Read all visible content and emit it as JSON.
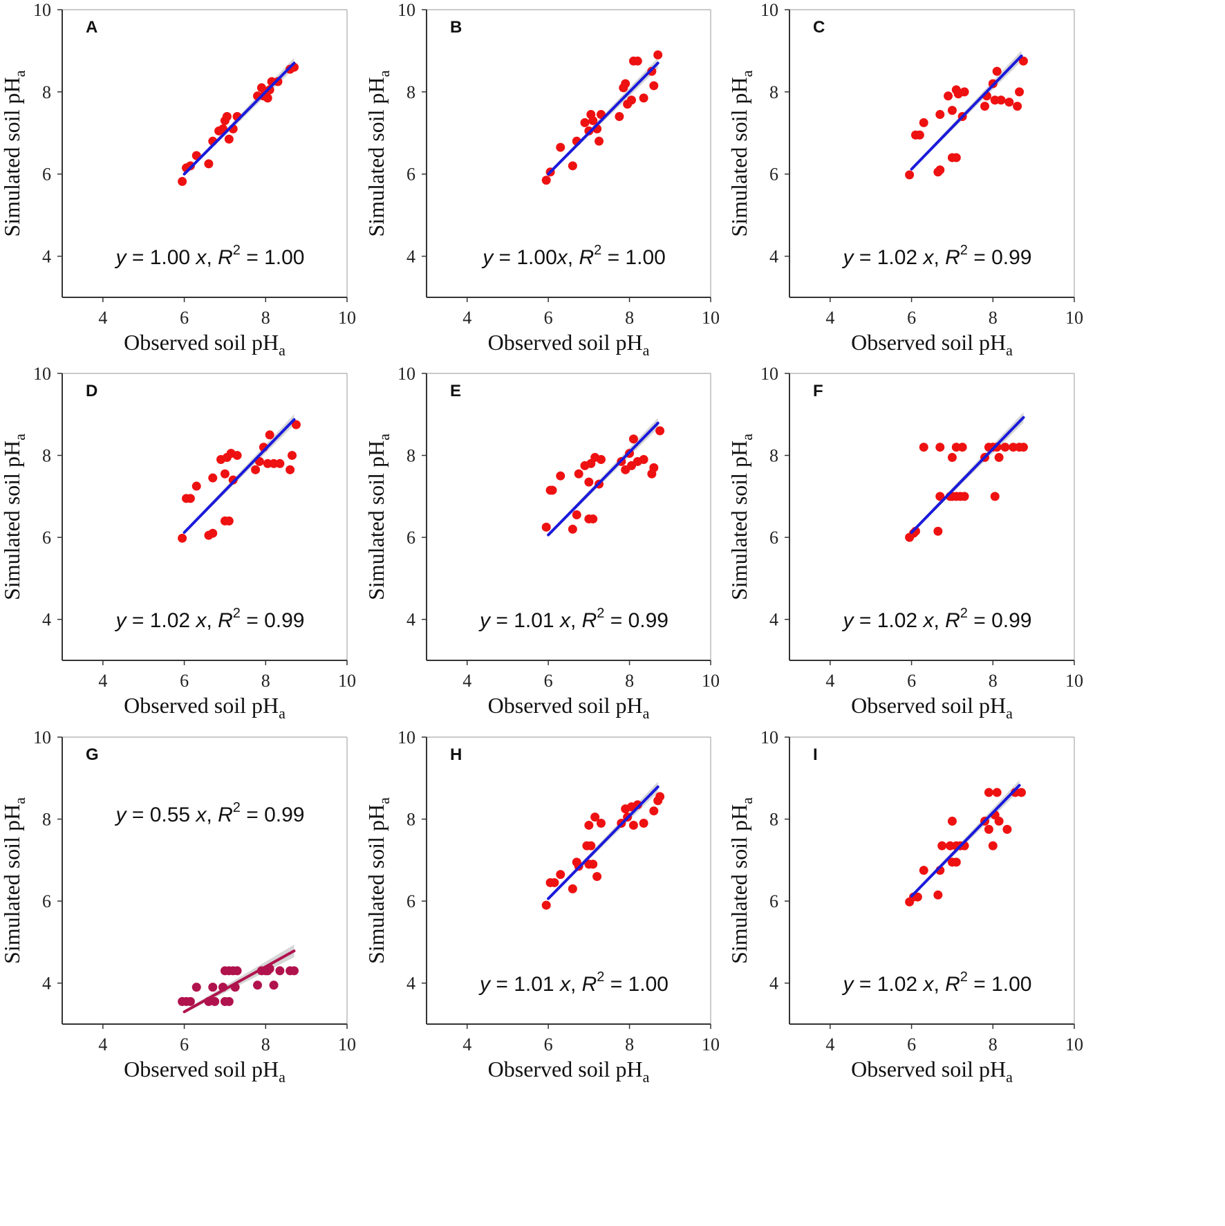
{
  "colors": {
    "point_red": "#ee1111",
    "point_maroon": "#b0124d",
    "line_blue": "#1a1adb",
    "line_maroon": "#b0124d",
    "band_gray": "#c8c8c8",
    "axis": "#333333"
  },
  "axis_common": {
    "xlabel": "Observed soil pH",
    "ylabel": "Simulated soil pH",
    "label_subscript": "a",
    "xlim": [
      3,
      10
    ],
    "ylim": [
      3,
      10
    ],
    "xticks": [
      4,
      6,
      8,
      10
    ],
    "yticks": [
      4,
      6,
      8,
      10
    ]
  },
  "chart_data": [
    {
      "id": "A",
      "type": "scatter",
      "title": "A",
      "equation_y": "y",
      "equation_mid": " = 1.00 ",
      "equation_x": "x",
      "equation_comma": ", ",
      "equation_R": "R",
      "equation_sup": "2",
      "equation_val": " = 1.00",
      "equation_pos": "bottom",
      "style": "blue",
      "slope": 1.0,
      "fit_x": [
        6.0,
        8.7
      ],
      "points": [
        [
          5.95,
          5.82
        ],
        [
          6.05,
          6.15
        ],
        [
          6.15,
          6.2
        ],
        [
          6.3,
          6.45
        ],
        [
          6.6,
          6.25
        ],
        [
          6.7,
          6.8
        ],
        [
          6.85,
          7.05
        ],
        [
          6.95,
          7.1
        ],
        [
          7.0,
          7.3
        ],
        [
          7.05,
          7.4
        ],
        [
          7.1,
          6.85
        ],
        [
          7.2,
          7.1
        ],
        [
          7.3,
          7.4
        ],
        [
          7.8,
          7.9
        ],
        [
          7.9,
          8.1
        ],
        [
          7.95,
          7.9
        ],
        [
          8.05,
          7.85
        ],
        [
          8.1,
          8.05
        ],
        [
          8.15,
          8.25
        ],
        [
          8.3,
          8.25
        ],
        [
          8.6,
          8.55
        ],
        [
          8.7,
          8.6
        ]
      ]
    },
    {
      "id": "B",
      "type": "scatter",
      "title": "B",
      "equation_y": "y",
      "equation_mid": " = 1.00",
      "equation_x": "x",
      "equation_comma": ", ",
      "equation_R": "R",
      "equation_sup": "2",
      "equation_val": " = 1.00",
      "equation_pos": "bottom",
      "style": "blue",
      "slope": 1.0,
      "fit_x": [
        6.0,
        8.7
      ],
      "points": [
        [
          5.95,
          5.85
        ],
        [
          6.05,
          6.05
        ],
        [
          6.3,
          6.65
        ],
        [
          6.6,
          6.2
        ],
        [
          6.7,
          6.8
        ],
        [
          6.9,
          7.25
        ],
        [
          7.0,
          7.05
        ],
        [
          7.05,
          7.45
        ],
        [
          7.1,
          7.3
        ],
        [
          7.2,
          7.1
        ],
        [
          7.25,
          6.8
        ],
        [
          7.3,
          7.45
        ],
        [
          7.75,
          7.4
        ],
        [
          7.85,
          8.1
        ],
        [
          7.9,
          8.2
        ],
        [
          7.95,
          7.7
        ],
        [
          8.05,
          7.8
        ],
        [
          8.1,
          8.75
        ],
        [
          8.2,
          8.75
        ],
        [
          8.35,
          7.85
        ],
        [
          8.55,
          8.5
        ],
        [
          8.6,
          8.15
        ],
        [
          8.7,
          8.9
        ]
      ]
    },
    {
      "id": "C",
      "type": "scatter",
      "title": "C",
      "equation_y": "y",
      "equation_mid": " = 1.02 ",
      "equation_x": "x",
      "equation_comma": ", ",
      "equation_R": "R",
      "equation_sup": "2",
      "equation_val": " = 0.99",
      "equation_pos": "bottom",
      "style": "blue",
      "slope": 1.02,
      "fit_x": [
        6.0,
        8.7
      ],
      "points": [
        [
          5.95,
          5.98
        ],
        [
          6.1,
          6.95
        ],
        [
          6.2,
          6.95
        ],
        [
          6.3,
          7.25
        ],
        [
          6.65,
          6.05
        ],
        [
          6.7,
          6.1
        ],
        [
          6.7,
          7.45
        ],
        [
          6.9,
          7.9
        ],
        [
          7.0,
          7.55
        ],
        [
          7.0,
          6.4
        ],
        [
          7.1,
          6.4
        ],
        [
          7.1,
          8.05
        ],
        [
          7.15,
          7.95
        ],
        [
          7.25,
          7.4
        ],
        [
          7.3,
          8.0
        ],
        [
          7.8,
          7.65
        ],
        [
          7.85,
          7.9
        ],
        [
          8.0,
          8.2
        ],
        [
          8.05,
          7.8
        ],
        [
          8.1,
          8.5
        ],
        [
          8.2,
          7.8
        ],
        [
          8.4,
          7.75
        ],
        [
          8.6,
          7.65
        ],
        [
          8.65,
          8.0
        ],
        [
          8.75,
          8.75
        ]
      ]
    },
    {
      "id": "D",
      "type": "scatter",
      "title": "D",
      "equation_y": "y",
      "equation_mid": " = 1.02 ",
      "equation_x": "x",
      "equation_comma": ", ",
      "equation_R": "R",
      "equation_sup": "2",
      "equation_val": " = 0.99",
      "equation_pos": "bottom",
      "style": "blue",
      "slope": 1.02,
      "fit_x": [
        6.0,
        8.7
      ],
      "points": [
        [
          5.95,
          5.98
        ],
        [
          6.05,
          6.95
        ],
        [
          6.15,
          6.95
        ],
        [
          6.3,
          7.25
        ],
        [
          6.6,
          6.05
        ],
        [
          6.7,
          6.1
        ],
        [
          6.7,
          7.45
        ],
        [
          6.9,
          7.9
        ],
        [
          7.0,
          7.55
        ],
        [
          7.0,
          6.4
        ],
        [
          7.1,
          6.4
        ],
        [
          7.05,
          7.95
        ],
        [
          7.15,
          8.05
        ],
        [
          7.2,
          7.4
        ],
        [
          7.3,
          8.0
        ],
        [
          7.75,
          7.65
        ],
        [
          7.85,
          7.85
        ],
        [
          7.95,
          8.2
        ],
        [
          8.05,
          7.8
        ],
        [
          8.1,
          8.5
        ],
        [
          8.2,
          7.8
        ],
        [
          8.35,
          7.8
        ],
        [
          8.6,
          7.65
        ],
        [
          8.65,
          8.0
        ],
        [
          8.75,
          8.75
        ]
      ]
    },
    {
      "id": "E",
      "type": "scatter",
      "title": "E",
      "equation_y": "y",
      "equation_mid": " = 1.01 ",
      "equation_x": "x",
      "equation_comma": ", ",
      "equation_R": "R",
      "equation_sup": "2",
      "equation_val": " = 0.99",
      "equation_pos": "bottom",
      "style": "blue",
      "slope": 1.01,
      "fit_x": [
        6.0,
        8.7
      ],
      "points": [
        [
          5.95,
          6.25
        ],
        [
          6.05,
          7.15
        ],
        [
          6.1,
          7.15
        ],
        [
          6.3,
          7.5
        ],
        [
          6.6,
          6.2
        ],
        [
          6.7,
          6.55
        ],
        [
          6.75,
          7.55
        ],
        [
          6.9,
          7.75
        ],
        [
          7.0,
          7.35
        ],
        [
          7.0,
          6.45
        ],
        [
          7.1,
          6.45
        ],
        [
          7.05,
          7.8
        ],
        [
          7.15,
          7.95
        ],
        [
          7.25,
          7.3
        ],
        [
          7.3,
          7.9
        ],
        [
          7.8,
          7.85
        ],
        [
          7.9,
          7.65
        ],
        [
          8.0,
          8.05
        ],
        [
          8.05,
          7.75
        ],
        [
          8.1,
          8.4
        ],
        [
          8.2,
          7.85
        ],
        [
          8.35,
          7.9
        ],
        [
          8.55,
          7.55
        ],
        [
          8.6,
          7.7
        ],
        [
          8.75,
          8.6
        ]
      ]
    },
    {
      "id": "F",
      "type": "scatter",
      "title": "F",
      "equation_y": "y",
      "equation_mid": " = 1.02 ",
      "equation_x": "x",
      "equation_comma": ", ",
      "equation_R": "R",
      "equation_sup": "2",
      "equation_val": " = 0.99",
      "equation_pos": "bottom",
      "style": "blue",
      "slope": 1.02,
      "fit_x": [
        6.0,
        8.75
      ],
      "points": [
        [
          5.95,
          6.0
        ],
        [
          6.05,
          6.1
        ],
        [
          6.1,
          6.15
        ],
        [
          6.3,
          8.2
        ],
        [
          6.65,
          6.15
        ],
        [
          6.7,
          7.0
        ],
        [
          6.7,
          8.2
        ],
        [
          6.95,
          7.0
        ],
        [
          7.0,
          7.95
        ],
        [
          7.0,
          7.0
        ],
        [
          7.1,
          8.2
        ],
        [
          7.1,
          7.0
        ],
        [
          7.2,
          7.0
        ],
        [
          7.25,
          8.2
        ],
        [
          7.3,
          7.0
        ],
        [
          7.8,
          7.95
        ],
        [
          7.9,
          8.2
        ],
        [
          8.0,
          8.2
        ],
        [
          8.05,
          7.0
        ],
        [
          8.1,
          8.2
        ],
        [
          8.15,
          7.95
        ],
        [
          8.3,
          8.2
        ],
        [
          8.5,
          8.2
        ],
        [
          8.65,
          8.2
        ],
        [
          8.75,
          8.2
        ]
      ]
    },
    {
      "id": "G",
      "type": "scatter",
      "title": "G",
      "equation_y": "y",
      "equation_mid": " = 0.55 ",
      "equation_x": "x",
      "equation_comma": ", ",
      "equation_R": "R",
      "equation_sup": "2",
      "equation_val": " = 0.99",
      "equation_pos": "top",
      "style": "maroon",
      "slope": 0.55,
      "fit_x": [
        6.0,
        8.7
      ],
      "points": [
        [
          5.95,
          3.55
        ],
        [
          6.05,
          3.55
        ],
        [
          6.15,
          3.55
        ],
        [
          6.3,
          3.9
        ],
        [
          6.6,
          3.55
        ],
        [
          6.7,
          3.9
        ],
        [
          6.75,
          3.55
        ],
        [
          6.95,
          3.9
        ],
        [
          7.0,
          4.3
        ],
        [
          7.0,
          3.55
        ],
        [
          7.1,
          4.3
        ],
        [
          7.1,
          3.55
        ],
        [
          7.2,
          4.3
        ],
        [
          7.25,
          3.9
        ],
        [
          7.3,
          4.3
        ],
        [
          7.8,
          3.95
        ],
        [
          7.9,
          4.3
        ],
        [
          8.0,
          4.3
        ],
        [
          8.05,
          4.3
        ],
        [
          8.1,
          4.35
        ],
        [
          8.2,
          3.95
        ],
        [
          8.35,
          4.3
        ],
        [
          8.6,
          4.3
        ],
        [
          8.7,
          4.3
        ]
      ]
    },
    {
      "id": "H",
      "type": "scatter",
      "title": "H",
      "equation_y": "y",
      "equation_mid": " = 1.01 ",
      "equation_x": "x",
      "equation_comma": ", ",
      "equation_R": "R",
      "equation_sup": "2",
      "equation_val": " = 1.00",
      "equation_pos": "bottom",
      "style": "blue",
      "slope": 1.01,
      "fit_x": [
        6.0,
        8.7
      ],
      "points": [
        [
          5.95,
          5.9
        ],
        [
          6.05,
          6.45
        ],
        [
          6.15,
          6.45
        ],
        [
          6.3,
          6.65
        ],
        [
          6.6,
          6.3
        ],
        [
          6.7,
          6.95
        ],
        [
          6.75,
          6.85
        ],
        [
          6.95,
          7.35
        ],
        [
          7.0,
          7.85
        ],
        [
          7.0,
          6.9
        ],
        [
          7.1,
          6.9
        ],
        [
          7.05,
          7.35
        ],
        [
          7.15,
          8.05
        ],
        [
          7.2,
          6.6
        ],
        [
          7.3,
          7.9
        ],
        [
          7.8,
          7.9
        ],
        [
          7.9,
          8.25
        ],
        [
          7.95,
          8.05
        ],
        [
          8.05,
          8.3
        ],
        [
          8.1,
          7.85
        ],
        [
          8.2,
          8.35
        ],
        [
          8.35,
          7.9
        ],
        [
          8.6,
          8.2
        ],
        [
          8.7,
          8.45
        ],
        [
          8.75,
          8.55
        ]
      ]
    },
    {
      "id": "I",
      "type": "scatter",
      "title": "I",
      "equation_y": "y",
      "equation_mid": " = 1.02 ",
      "equation_x": "x",
      "equation_comma": ", ",
      "equation_R": "R",
      "equation_sup": "2",
      "equation_val": " = 1.00",
      "equation_pos": "bottom",
      "style": "blue",
      "slope": 1.02,
      "fit_x": [
        6.0,
        8.65
      ],
      "points": [
        [
          5.95,
          5.98
        ],
        [
          6.05,
          6.1
        ],
        [
          6.15,
          6.1
        ],
        [
          6.3,
          6.75
        ],
        [
          6.65,
          6.15
        ],
        [
          6.7,
          6.75
        ],
        [
          6.75,
          7.35
        ],
        [
          6.95,
          7.35
        ],
        [
          7.0,
          7.95
        ],
        [
          7.0,
          6.95
        ],
        [
          7.1,
          6.95
        ],
        [
          7.1,
          7.35
        ],
        [
          7.2,
          7.35
        ],
        [
          7.3,
          7.35
        ],
        [
          7.8,
          7.95
        ],
        [
          7.9,
          7.75
        ],
        [
          7.9,
          8.65
        ],
        [
          8.0,
          7.35
        ],
        [
          8.05,
          8.1
        ],
        [
          8.1,
          8.65
        ],
        [
          8.15,
          7.95
        ],
        [
          8.35,
          7.75
        ],
        [
          8.55,
          8.65
        ],
        [
          8.7,
          8.65
        ]
      ]
    }
  ]
}
